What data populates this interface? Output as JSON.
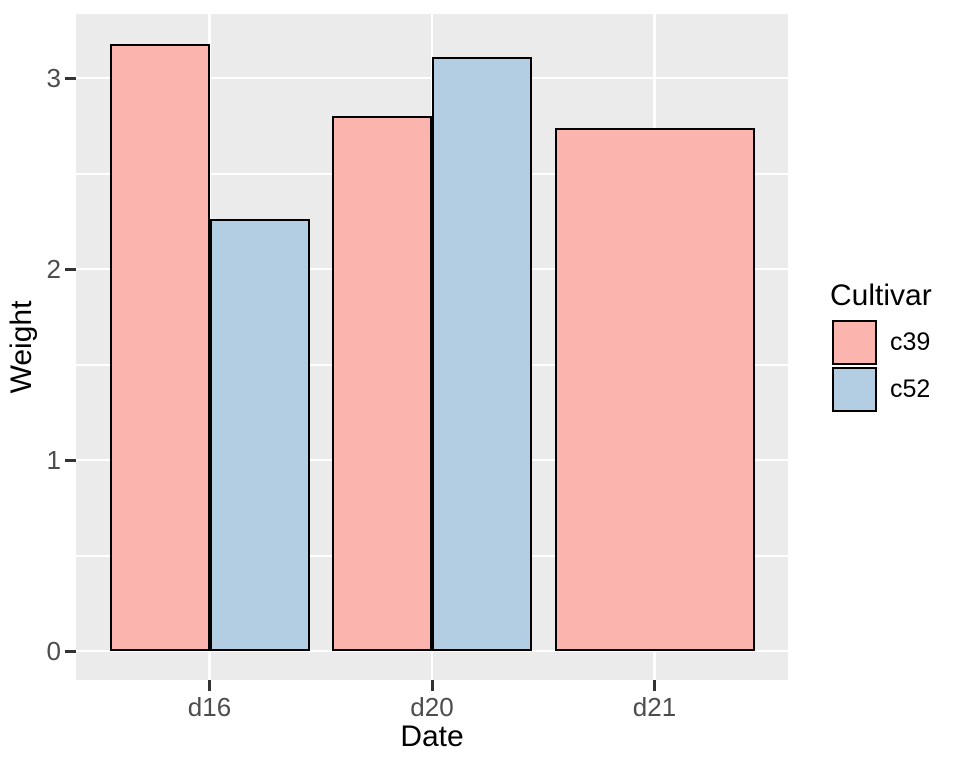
{
  "chart_data": {
    "type": "bar",
    "title": "",
    "xlabel": "Date",
    "ylabel": "Weight",
    "categories": [
      "d16",
      "d20",
      "d21"
    ],
    "series": [
      {
        "name": "c39",
        "color": "#FBB4AE",
        "values": [
          3.18,
          2.8,
          2.74
        ]
      },
      {
        "name": "c52",
        "color": "#B3CDE3",
        "values": [
          2.26,
          3.11,
          null
        ]
      }
    ],
    "y_ticks": [
      0,
      1,
      2,
      3
    ],
    "y_minor_ticks": [
      0.5,
      1.5,
      2.5
    ],
    "ylim": [
      -0.16,
      3.34
    ],
    "grid": true,
    "legend": {
      "title": "Cultivar",
      "position": "right",
      "entries": [
        "c39",
        "c52"
      ]
    },
    "style": {
      "panel_background": "#EBEBEB",
      "gridline_color": "#FFFFFF",
      "bar_border_color": "#000000",
      "tick_mark_color": "#333333",
      "tick_label_color": "#4D4D4D",
      "axis_title_color": "#000000",
      "background": "#FFFFFF"
    }
  }
}
